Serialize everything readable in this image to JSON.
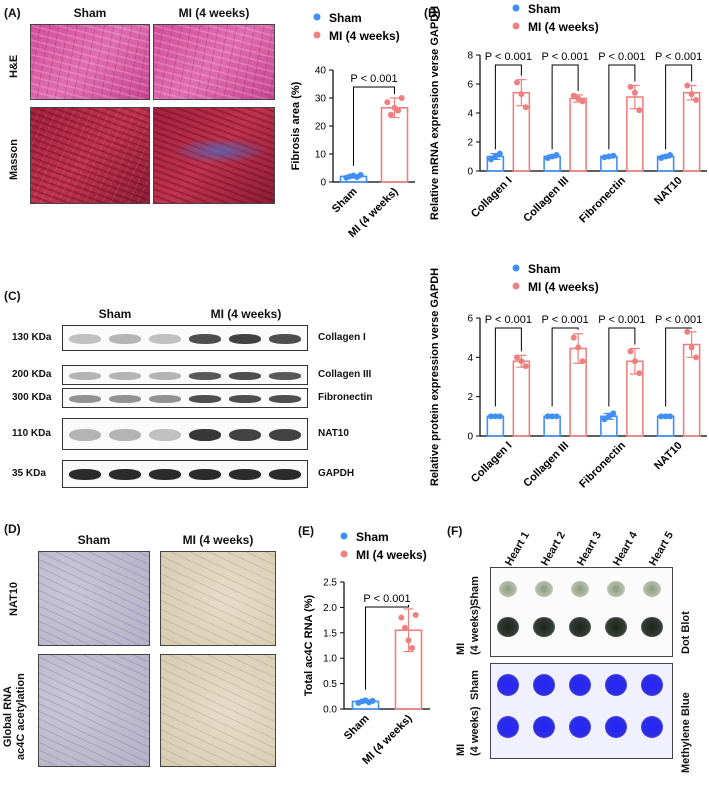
{
  "panelA": {
    "label": "(A)",
    "col_headers": [
      "Sham",
      "MI (4 weeks)"
    ],
    "row_labels": [
      "H&E",
      "Masson"
    ]
  },
  "panelB": {
    "label": "(B)"
  },
  "panelC": {
    "label": "(C)",
    "group_headers": [
      "Sham",
      "MI (4 weeks)"
    ],
    "rows": [
      {
        "kda": "130 KDa",
        "protein": "Collagen I"
      },
      {
        "kda": "200 KDa",
        "protein": "Collagen III"
      },
      {
        "kda": "300 KDa",
        "protein": "Fibronectin"
      },
      {
        "kda": "110 KDa",
        "protein": "NAT10"
      },
      {
        "kda": "35 KDa",
        "protein": "GAPDH"
      }
    ]
  },
  "panelD": {
    "label": "(D)",
    "col_headers": [
      "Sham",
      "MI (4 weeks)"
    ],
    "row_labels": [
      "NAT10",
      "Global RNA\nac4C acetylation"
    ]
  },
  "panelE": {
    "label": "(E)"
  },
  "panelF": {
    "label": "(F)",
    "hearts": [
      "Heart 1",
      "Heart 2",
      "Heart 3",
      "Heart 4",
      "Heart 5"
    ],
    "left_labels": [
      "MI",
      "(4 weeks)",
      "Sham"
    ],
    "right_labels": [
      "Dot Blot",
      "Methylene Blue"
    ]
  },
  "colors": {
    "sham": "#3f8ff5",
    "mi": "#f08080"
  },
  "chart_data": [
    {
      "id": "fibrosis",
      "type": "bar",
      "legend": [
        "Sham",
        "MI (4 weeks)"
      ],
      "categories": [
        "Sham",
        "MI (4 weeks)"
      ],
      "values": [
        2,
        26.5
      ],
      "errors": [
        0.6,
        3.5
      ],
      "points": [
        [
          1.5,
          2.0,
          2.3,
          1.8,
          2.5
        ],
        [
          28.5,
          24.0,
          26.5,
          25.5,
          30.0
        ]
      ],
      "ylabel": "Fibrosis area (%)",
      "ylim": [
        0,
        40
      ],
      "yticks": [
        "0",
        "10",
        "20",
        "30",
        "40"
      ],
      "pvalues": [
        "P < 0.001"
      ]
    },
    {
      "id": "mrna",
      "type": "bar",
      "legend": [
        "Sham",
        "MI (4 weeks)"
      ],
      "categories": [
        "Collagen I",
        "Collagen III",
        "Fibronectin",
        "NAT10"
      ],
      "series": [
        {
          "name": "Sham",
          "values": [
            1.0,
            1.0,
            1.0,
            1.0
          ],
          "errors": [
            0.2,
            0.1,
            0.08,
            0.1
          ],
          "points": [
            [
              0.8,
              1.0,
              1.2
            ],
            [
              0.9,
              1.0,
              1.1
            ],
            [
              0.95,
              1.0,
              1.05
            ],
            [
              0.9,
              1.0,
              1.1
            ]
          ]
        },
        {
          "name": "MI (4 weeks)",
          "values": [
            5.4,
            5.0,
            5.1,
            5.4
          ],
          "errors": [
            0.9,
            0.25,
            0.8,
            0.5
          ],
          "points": [
            [
              6.1,
              5.3,
              4.4
            ],
            [
              5.2,
              5.0,
              4.8
            ],
            [
              5.8,
              5.4,
              4.2
            ],
            [
              5.9,
              5.3,
              4.9
            ]
          ]
        }
      ],
      "ylabel": "Relative mRNA expression verse GAPDH",
      "ylim": [
        0,
        8
      ],
      "yticks": [
        "0",
        "2",
        "4",
        "6",
        "8"
      ],
      "pvalues": [
        "P < 0.001",
        "P < 0.001",
        "P < 0.001",
        "P < 0.001"
      ]
    },
    {
      "id": "protein",
      "type": "bar",
      "legend": [
        "Sham",
        "MI (4 weeks)"
      ],
      "categories": [
        "Collagen I",
        "Collagen III",
        "Fibronectin",
        "NAT10"
      ],
      "series": [
        {
          "name": "Sham",
          "values": [
            1.0,
            1.0,
            1.0,
            1.0
          ],
          "errors": [
            0.05,
            0.05,
            0.15,
            0.05
          ],
          "points": [
            [
              1.0,
              1.0,
              1.0
            ],
            [
              1.0,
              1.0,
              1.0
            ],
            [
              0.85,
              1.0,
              1.15
            ],
            [
              1.0,
              1.0,
              1.0
            ]
          ]
        },
        {
          "name": "MI (4 weeks)",
          "values": [
            3.8,
            4.45,
            3.8,
            4.65
          ],
          "errors": [
            0.3,
            0.75,
            0.65,
            0.65
          ],
          "points": [
            [
              4.0,
              3.8,
              3.55
            ],
            [
              5.0,
              4.5,
              3.8
            ],
            [
              4.3,
              3.8,
              3.2
            ],
            [
              5.3,
              4.5,
              4.0
            ]
          ]
        }
      ],
      "ylabel": "Relative protein expression verse GAPDH",
      "ylim": [
        0,
        6
      ],
      "yticks": [
        "0",
        "2",
        "4",
        "6"
      ],
      "pvalues": [
        "P < 0.001",
        "P < 0.001",
        "P < 0.001",
        "P < 0.001"
      ]
    },
    {
      "id": "ac4c",
      "type": "bar",
      "legend": [
        "Sham",
        "MI (4 weeks)"
      ],
      "categories": [
        "Sham",
        "MI (4 weeks)"
      ],
      "values": [
        0.15,
        1.55
      ],
      "errors": [
        0.03,
        0.42
      ],
      "points": [
        [
          0.12,
          0.15,
          0.17,
          0.13,
          0.16
        ],
        [
          1.8,
          1.6,
          1.35,
          1.2,
          1.85
        ]
      ],
      "ylabel": "Total ac4C RNA (%)",
      "ylim": [
        0,
        2.5
      ],
      "yticks": [
        "0.0",
        "0.5",
        "1.0",
        "1.5",
        "2.0",
        "2.5"
      ],
      "pvalues": [
        "P < 0.001"
      ]
    }
  ]
}
